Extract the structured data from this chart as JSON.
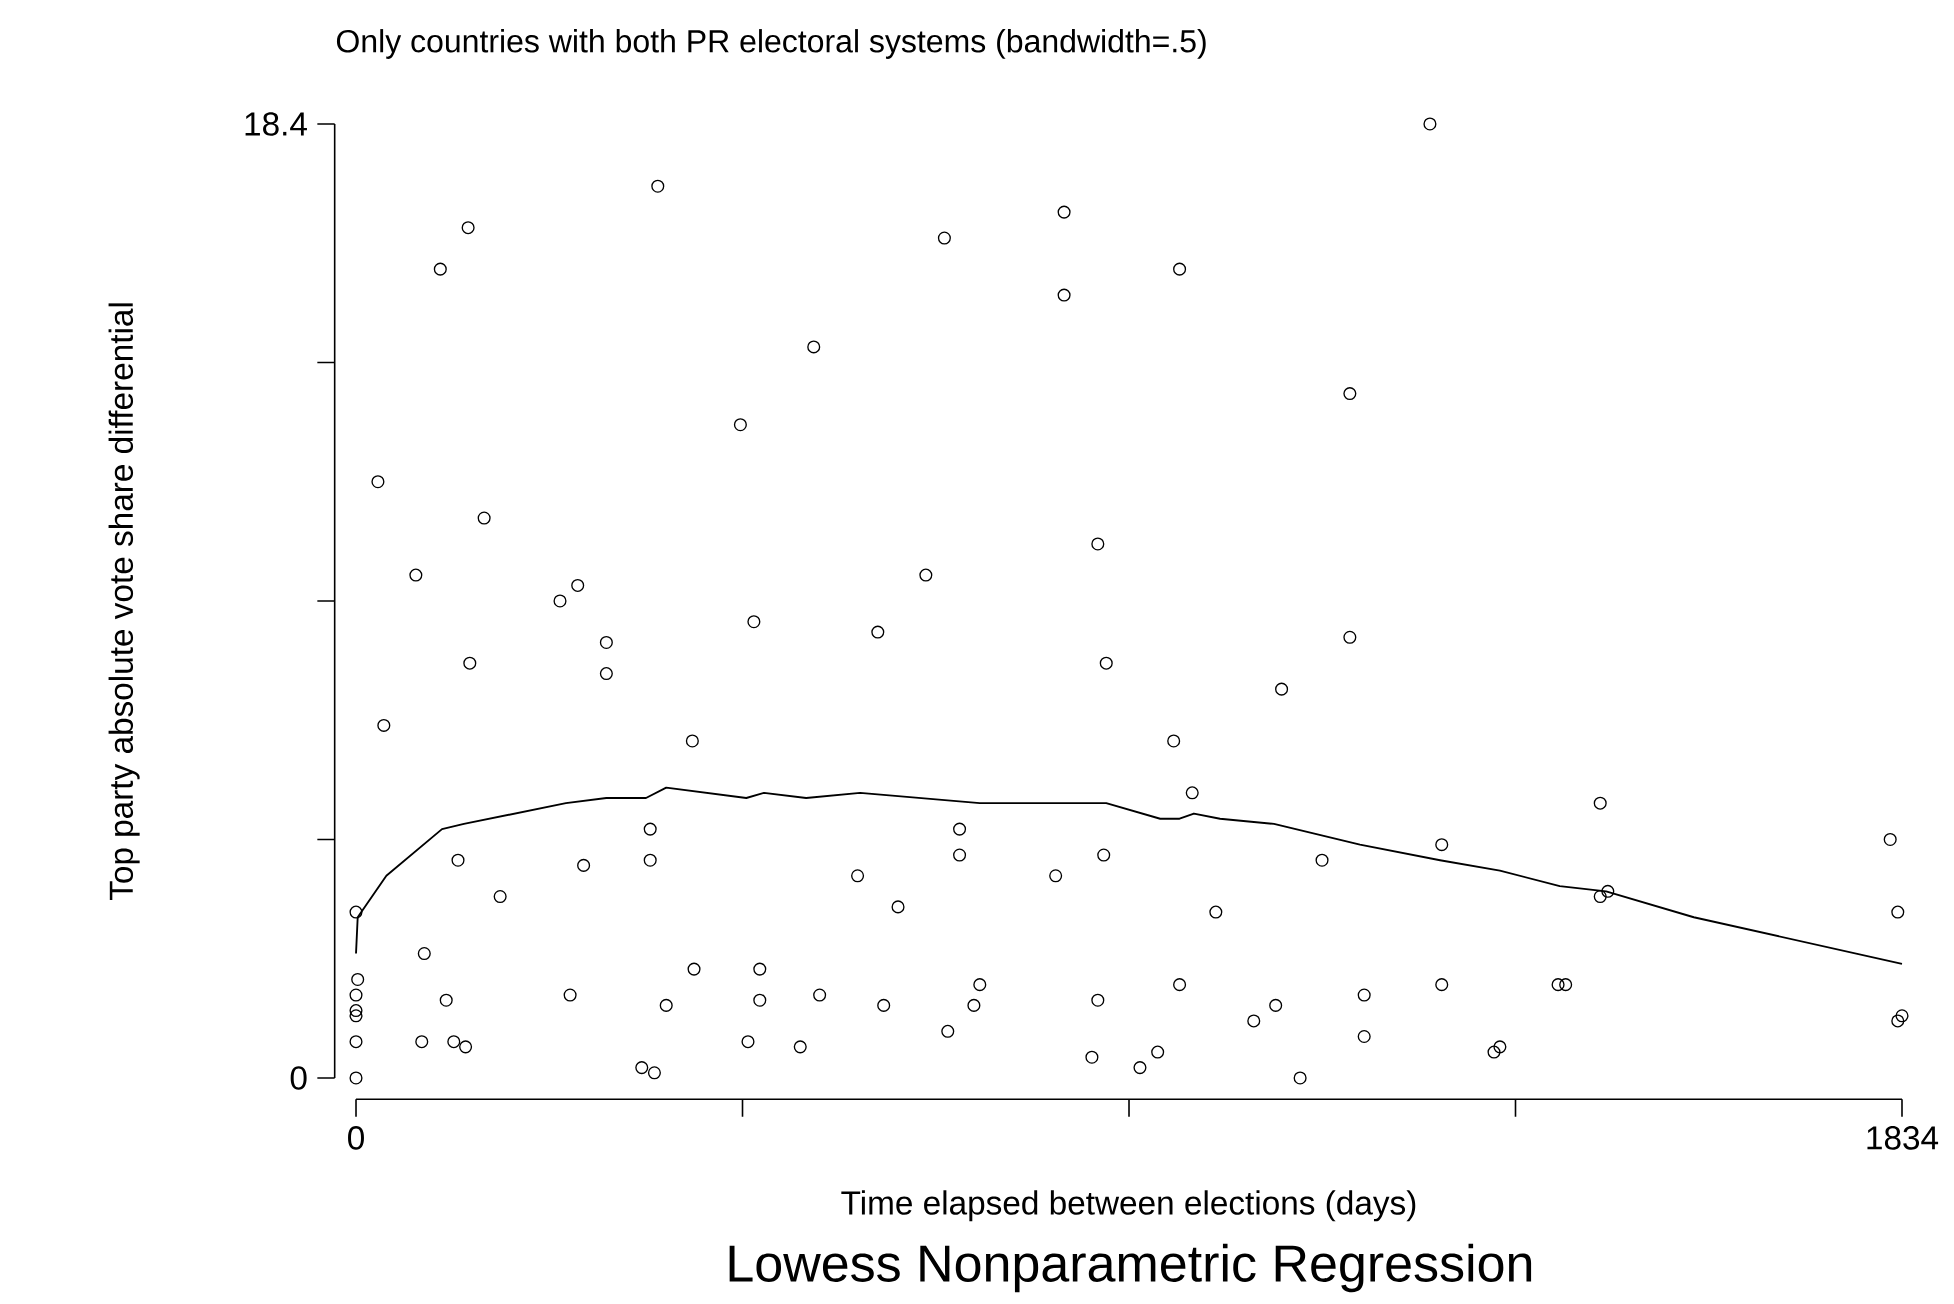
{
  "chart_data": {
    "type": "scatter",
    "title": "Lowess Nonparametric Regression",
    "subtitle": "Only countries with both PR electoral systems (bandwidth=.5)",
    "xlabel": "Time elapsed between elections (days)",
    "ylabel": "Top party absolute vote share differential",
    "xlim": [
      0,
      1834
    ],
    "ylim": [
      0,
      18.4
    ],
    "xticks": [
      0,
      {
        "value": 458.5,
        "label": null
      },
      {
        "value": 917,
        "label": null
      },
      {
        "value": 1375.5,
        "label": null
      },
      1834
    ],
    "yticks": [
      0,
      {
        "value": 4.6,
        "label": null
      },
      {
        "value": 9.2,
        "label": null
      },
      {
        "value": 13.8,
        "label": null
      },
      18.4
    ],
    "grid": false,
    "series": [
      {
        "marker": "circle",
        "color": "#000000",
        "x": [
          358,
          133,
          100,
          543,
          456,
          26,
          152,
          71,
          263,
          242,
          472,
          297,
          135,
          297,
          33,
          399,
          349,
          121,
          270,
          349,
          595,
          171,
          0,
          81,
          2,
          0,
          0,
          0,
          107,
          254,
          401,
          479,
          479,
          550,
          368,
          0,
          78,
          116,
          130,
          465,
          527,
          339,
          354,
          0,
          698,
          840,
          977,
          840,
          1179,
          880,
          676,
          619,
          1179,
          890,
          1098,
          970,
          992,
          716,
          716,
          887,
          830,
          1146,
          643,
          1020,
          740,
          626,
          733,
          880,
          977,
          702,
          1091,
          1065,
          1196,
          1196,
          873,
          930,
          951,
          1120,
          1274,
          1476,
          1288,
          1820,
          1476,
          1485,
          1829,
          1288,
          1426,
          1435,
          1350,
          1357,
          1829,
          1834
        ],
        "values": [
          17.2,
          16.4,
          15.6,
          14.1,
          12.6,
          11.5,
          10.8,
          9.7,
          9.5,
          9.2,
          8.8,
          8.4,
          8.0,
          7.8,
          6.8,
          6.5,
          4.8,
          4.2,
          4.1,
          4.2,
          3.9,
          3.5,
          3.2,
          2.4,
          1.9,
          1.6,
          1.3,
          1.2,
          1.5,
          1.6,
          2.1,
          2.1,
          1.5,
          1.6,
          1.4,
          0.7,
          0.7,
          0.7,
          0.6,
          0.7,
          0.6,
          0.2,
          0.1,
          0,
          16.2,
          16.7,
          15.6,
          15.1,
          13.2,
          10.3,
          9.7,
          8.6,
          8.5,
          8.0,
          7.5,
          6.5,
          5.5,
          4.8,
          4.3,
          4.3,
          3.9,
          4.2,
          3.3,
          3.2,
          1.8,
          1.4,
          1.4,
          1.5,
          1.8,
          0.9,
          1.4,
          1.1,
          1.6,
          0.8,
          0.4,
          0.2,
          0.5,
          0,
          18.4,
          5.3,
          4.5,
          4.6,
          3.5,
          3.6,
          3.2,
          1.8,
          1.8,
          1.8,
          0.5,
          0.6,
          1.1,
          1.2
        ]
      },
      {
        "type": "line",
        "marker": "none",
        "color": "#000000",
        "x": [
          0,
          2,
          36,
          102,
          128,
          249,
          297,
          344,
          368,
          463,
          484,
          534,
          598,
          740,
          890,
          954,
          977,
          994,
          1025,
          1089,
          1191,
          1286,
          1357,
          1428,
          1483,
          1587,
          1834
        ],
        "values": [
          2.4,
          3.1,
          3.9,
          4.8,
          4.9,
          5.3,
          5.4,
          5.4,
          5.6,
          5.4,
          5.5,
          5.4,
          5.5,
          5.3,
          5.3,
          5.0,
          5.0,
          5.1,
          5.0,
          4.9,
          4.5,
          4.2,
          4.0,
          3.7,
          3.6,
          3.1,
          2.2
        ]
      }
    ]
  }
}
